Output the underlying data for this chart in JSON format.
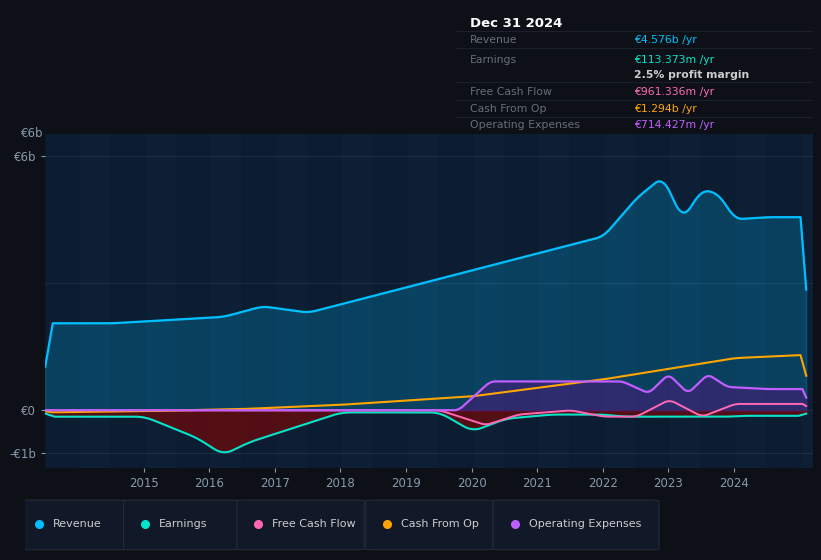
{
  "bg_color": "#0d1117",
  "chart_bg": "#0d1f35",
  "legend": [
    {
      "label": "Revenue",
      "color": "#00bfff"
    },
    {
      "label": "Earnings",
      "color": "#00e5cc"
    },
    {
      "label": "Free Cash Flow",
      "color": "#ff69b4"
    },
    {
      "label": "Cash From Op",
      "color": "#ffa500"
    },
    {
      "label": "Operating Expenses",
      "color": "#bf5fff"
    }
  ],
  "table_rows": [
    {
      "label": "Revenue",
      "value": "€4.576b /yr",
      "vcolor": "#00bfff"
    },
    {
      "label": "Earnings",
      "value": "€113.373m /yr",
      "vcolor": "#00e5cc"
    },
    {
      "label": "",
      "value": "2.5% profit margin",
      "vcolor": "#cccccc"
    },
    {
      "label": "Free Cash Flow",
      "value": "€961.336m /yr",
      "vcolor": "#ff69b4"
    },
    {
      "label": "Cash From Op",
      "value": "€1.294b /yr",
      "vcolor": "#ffa500"
    },
    {
      "label": "Operating Expenses",
      "value": "€714.427m /yr",
      "vcolor": "#bf5fff"
    }
  ]
}
